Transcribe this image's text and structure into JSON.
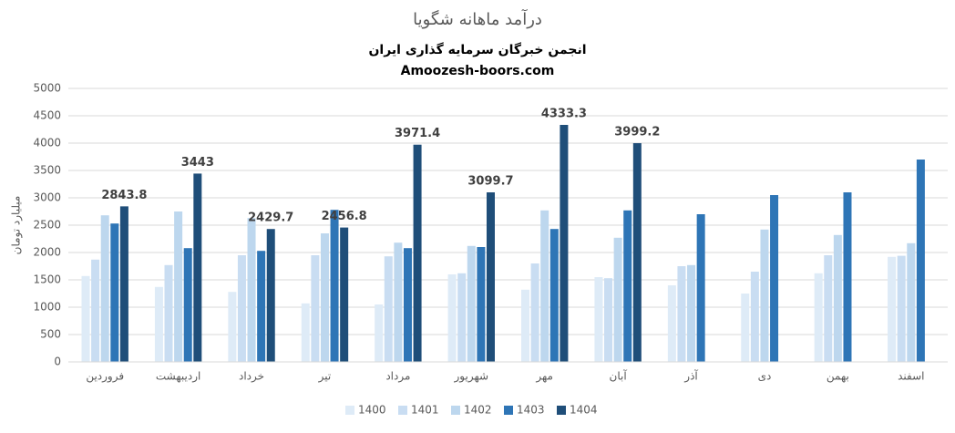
{
  "chart_data": {
    "type": "bar",
    "title": "درآمد ماهانه شگویا",
    "subtitles": [
      "انجمن خبرگان سرمایه گذاری ایران",
      "Amoozesh-boors.com"
    ],
    "y_label": "میلیارد تومان",
    "categories": [
      "فروردین",
      "اردیبهشت",
      "خرداد",
      "تیر",
      "مرداد",
      "شهریور",
      "مهر",
      "آبان",
      "آذر",
      "دی",
      "بهمن",
      "اسفند"
    ],
    "series": [
      {
        "name": "1400",
        "color": "#deebf7",
        "values": [
          1570,
          1370,
          1280,
          1070,
          1050,
          1600,
          1320,
          1550,
          1400,
          1250,
          1620,
          1920
        ]
      },
      {
        "name": "1401",
        "color": "#c9ddf2",
        "values": [
          1870,
          1770,
          1950,
          1950,
          1930,
          1620,
          1800,
          1530,
          1750,
          1650,
          1950,
          1940
        ]
      },
      {
        "name": "1402",
        "color": "#bdd7ee",
        "values": [
          2680,
          2750,
          2630,
          2350,
          2180,
          2120,
          2770,
          2270,
          1770,
          2420,
          2320,
          2170
        ]
      },
      {
        "name": "1403",
        "color": "#2e75b6",
        "values": [
          2530,
          2080,
          2030,
          2780,
          2080,
          2100,
          2430,
          2770,
          2700,
          3050,
          3100,
          3700
        ]
      },
      {
        "name": "1404",
        "color": "#1f4e79",
        "values": [
          2843.8,
          3443,
          2429.7,
          2456.8,
          3971.4,
          3099.7,
          4333.3,
          3999.2,
          null,
          null,
          null,
          null
        ],
        "data_labels": true
      }
    ],
    "ylim": [
      0,
      5000
    ],
    "yticks": [
      0,
      500,
      1000,
      1500,
      2000,
      2500,
      3000,
      3500,
      4000,
      4500,
      5000
    ],
    "grid": true,
    "legend": "bottom"
  }
}
